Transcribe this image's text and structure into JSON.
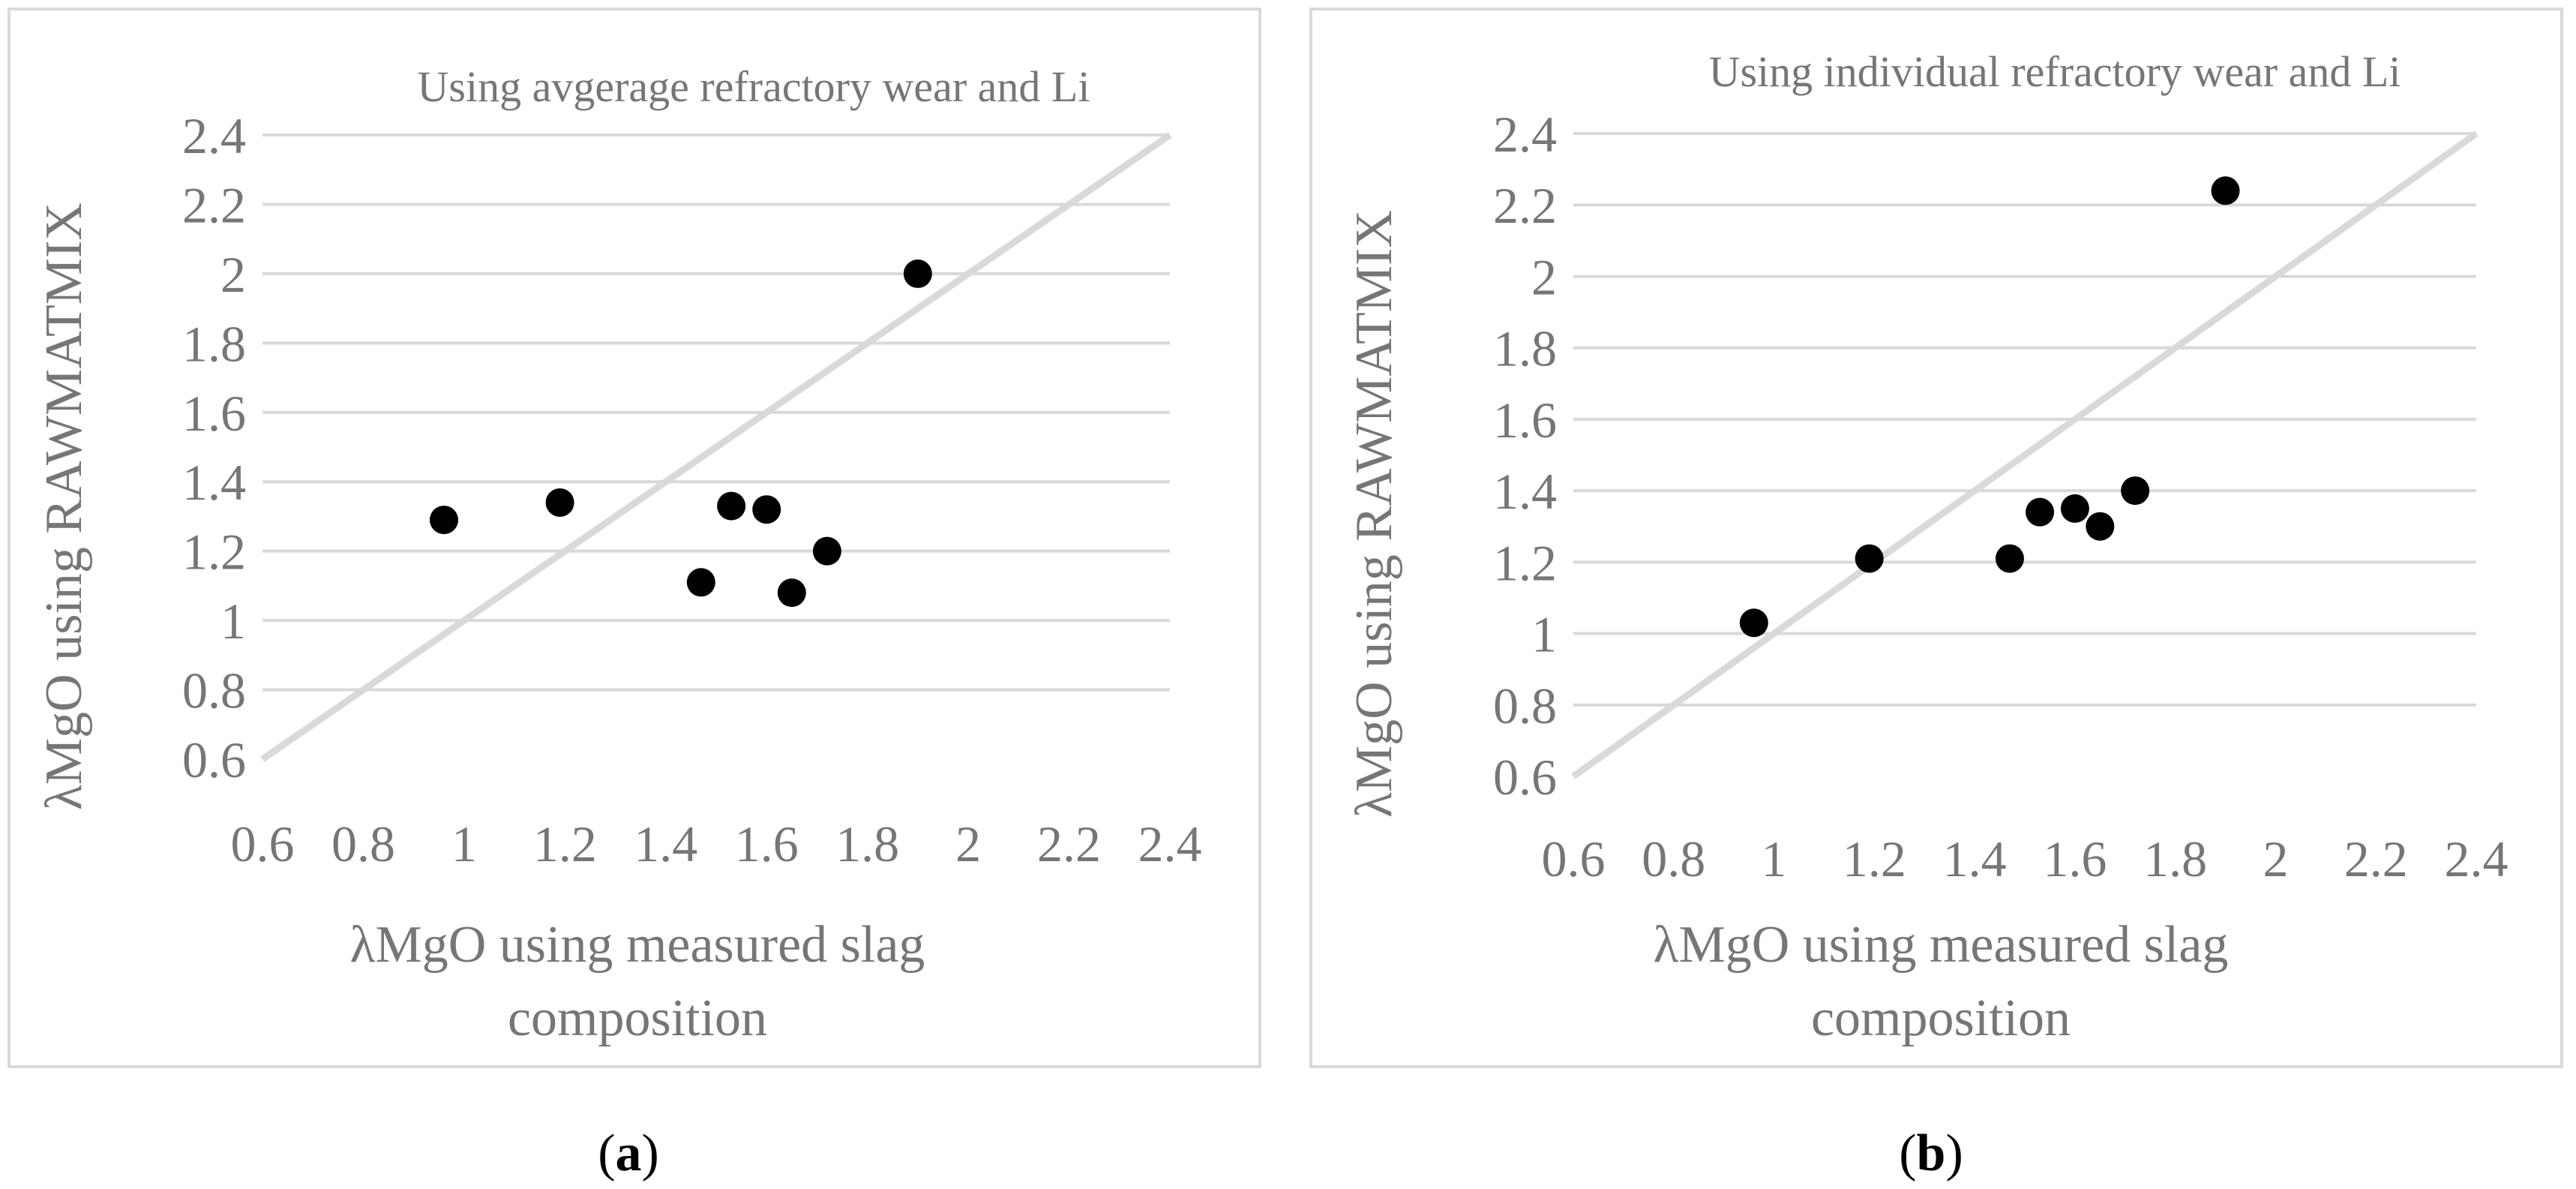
{
  "chart_data": [
    {
      "type": "scatter",
      "title": "Using avgerage refractory wear and Li",
      "xlabel": [
        "λMgO using measured slag",
        "composition"
      ],
      "ylabel": "λMgO using RAWMATMIX",
      "xlim": [
        0.6,
        2.4
      ],
      "ylim": [
        0.6,
        2.4
      ],
      "x_ticks": [
        "0.6",
        "0.8",
        "1",
        "1.2",
        "1.4",
        "1.6",
        "1.8",
        "2",
        "2.2",
        "2.4"
      ],
      "y_ticks": [
        "0.6",
        "0.8",
        "1",
        "1.2",
        "1.4",
        "1.6",
        "1.8",
        "2",
        "2.2",
        "2.4"
      ],
      "reference_line": "y = x",
      "points": [
        {
          "x": 0.96,
          "y": 1.29
        },
        {
          "x": 1.19,
          "y": 1.34
        },
        {
          "x": 1.47,
          "y": 1.11
        },
        {
          "x": 1.53,
          "y": 1.33
        },
        {
          "x": 1.6,
          "y": 1.32
        },
        {
          "x": 1.65,
          "y": 1.08
        },
        {
          "x": 1.72,
          "y": 1.2
        },
        {
          "x": 1.9,
          "y": 2.0
        }
      ],
      "caption": {
        "open": "(",
        "letter": "a",
        "close": ")"
      }
    },
    {
      "type": "scatter",
      "title": "Using individual refractory wear and Li",
      "xlabel": [
        "λMgO using measured slag",
        "composition"
      ],
      "ylabel": "λMgO using RAWMATMIX",
      "xlim": [
        0.6,
        2.4
      ],
      "ylim": [
        0.6,
        2.4
      ],
      "x_ticks": [
        "0.6",
        "0.8",
        "1",
        "1.2",
        "1.4",
        "1.6",
        "1.8",
        "2",
        "2.2",
        "2.4"
      ],
      "y_ticks": [
        "0.6",
        "0.8",
        "1",
        "1.2",
        "1.4",
        "1.6",
        "1.8",
        "2",
        "2.2",
        "2.4"
      ],
      "reference_line": "y = x",
      "points": [
        {
          "x": 0.96,
          "y": 1.03
        },
        {
          "x": 1.19,
          "y": 1.21
        },
        {
          "x": 1.47,
          "y": 1.21
        },
        {
          "x": 1.53,
          "y": 1.34
        },
        {
          "x": 1.6,
          "y": 1.35
        },
        {
          "x": 1.65,
          "y": 1.3
        },
        {
          "x": 1.72,
          "y": 1.4
        },
        {
          "x": 1.9,
          "y": 2.24
        }
      ],
      "caption": {
        "open": "(",
        "letter": "b",
        "close": ")"
      }
    }
  ]
}
